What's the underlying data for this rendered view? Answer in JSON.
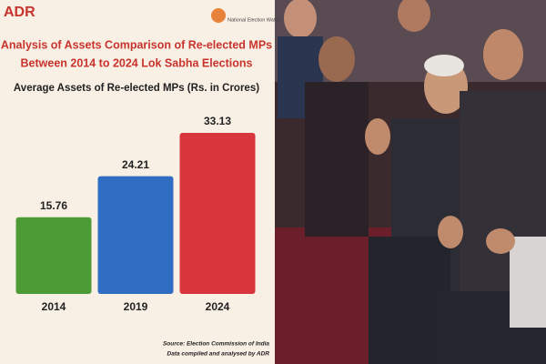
{
  "logos": [
    "ADR",
    "National Election Watch"
  ],
  "chart_data": {
    "type": "bar",
    "title": [
      "Analysis of Assets Comparison of Re-elected MPs",
      "Between 2014 to 2024 Lok Sabha Elections"
    ],
    "subtitle": "Average Assets of Re-elected MPs (Rs. in Crores)",
    "categories": [
      "2014",
      "2019",
      "2024"
    ],
    "values": [
      15.76,
      24.21,
      33.13
    ],
    "colors": [
      "#4d9b34",
      "#2f6dc3",
      "#d8363c"
    ],
    "source": [
      "Source: Election Commission of India",
      "Data compiled and analysed by ADR"
    ]
  }
}
